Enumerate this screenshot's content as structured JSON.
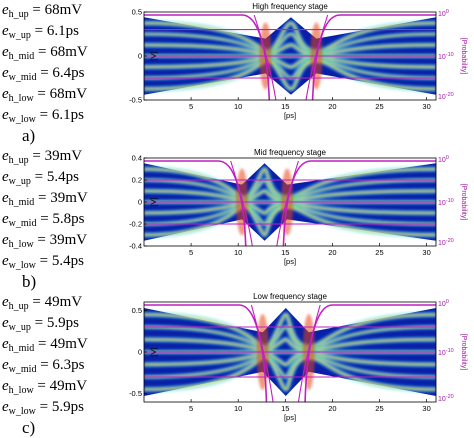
{
  "panels": [
    {
      "letter": "a)",
      "params": [
        {
          "sym": "e",
          "sub": "h_up",
          "value": " = 68mV"
        },
        {
          "sym": "e",
          "sub": "w_up",
          "value": " = 6.1ps"
        },
        {
          "sym": "e",
          "sub": "h_mid",
          "value": " = 68mV"
        },
        {
          "sym": "e",
          "sub": "w_mid",
          "value": " = 6.4ps"
        },
        {
          "sym": "e",
          "sub": "h_low",
          "value": " = 68mV"
        },
        {
          "sym": "e",
          "sub": "w_low",
          "value": " = 6.1ps"
        }
      ]
    },
    {
      "letter": "b)",
      "params": [
        {
          "sym": "e",
          "sub": "h_up",
          "value": " = 39mV"
        },
        {
          "sym": "e",
          "sub": "w_up",
          "value": " = 5.4ps"
        },
        {
          "sym": "e",
          "sub": "h_mid",
          "value": " = 39mV"
        },
        {
          "sym": "e",
          "sub": "w_mid",
          "value": " = 5.8ps"
        },
        {
          "sym": "e",
          "sub": "h_low",
          "value": " = 39mV"
        },
        {
          "sym": "e",
          "sub": "w_low",
          "value": " = 5.4ps"
        }
      ]
    },
    {
      "letter": "c)",
      "params": [
        {
          "sym": "e",
          "sub": "h_up",
          "value": " = 49mV"
        },
        {
          "sym": "e",
          "sub": "w_up",
          "value": " = 5.9ps"
        },
        {
          "sym": "e",
          "sub": "h_mid",
          "value": " = 49mV"
        },
        {
          "sym": "e",
          "sub": "w_mid",
          "value": " = 6.3ps"
        },
        {
          "sym": "e",
          "sub": "h_low",
          "value": " = 49mV"
        },
        {
          "sym": "e",
          "sub": "w_low",
          "value": " = 5.9ps"
        }
      ]
    }
  ],
  "chart_data": [
    {
      "type": "heatmap",
      "title": "High frequency stage",
      "xlabel": "[ps]",
      "ylabel": "[V]",
      "right_label": "[Probability]",
      "xlim": [
        0,
        31
      ],
      "ylim": [
        -0.5,
        0.5
      ],
      "xticks": [
        5,
        10,
        15,
        20,
        25,
        30
      ],
      "yticks": [
        -0.5,
        0,
        0.5
      ],
      "ytick_labels": [
        "-0.5",
        "0",
        "0.5"
      ],
      "right_ticks": [
        "10^0",
        "10^-10",
        "10^-20"
      ],
      "eye_crossings_ps": [
        12.9,
        18.3
      ],
      "eye_levels_v": [
        0.3,
        0.0,
        -0.25
      ],
      "bathtub_color": "#c21fc2",
      "colormap": "jet"
    },
    {
      "type": "heatmap",
      "title": "Mid frequency stage",
      "xlabel": "[ps]",
      "ylabel": "[V]",
      "right_label": "[Probability]",
      "xlim": [
        0,
        31
      ],
      "ylim": [
        -0.4,
        0.4
      ],
      "xticks": [
        5,
        10,
        15,
        20,
        25,
        30
      ],
      "yticks": [
        -0.4,
        -0.2,
        0,
        0.2,
        0.4
      ],
      "ytick_labels": [
        "-0.4",
        "-0.2",
        "0",
        "0.2",
        "0.4"
      ],
      "right_ticks": [
        "10^0",
        "10^-10",
        "10^-20"
      ],
      "eye_crossings_ps": [
        10.4,
        15.2
      ],
      "eye_levels_v": [
        0.2,
        0.0,
        -0.2
      ],
      "bathtub_color": "#c21fc2",
      "colormap": "jet"
    },
    {
      "type": "heatmap",
      "title": "Low frequency stage",
      "xlabel": "[ps]",
      "ylabel": "[V]",
      "right_label": "[Probability]",
      "xlim": [
        0,
        31
      ],
      "ylim": [
        -0.6,
        0.6
      ],
      "xticks": [
        5,
        10,
        15,
        20,
        25,
        30
      ],
      "yticks": [
        -0.5,
        0,
        0.5
      ],
      "ytick_labels": [
        "-0.5",
        "0",
        "0.5"
      ],
      "right_ticks": [
        "10^0",
        "10^-10",
        "10^-20"
      ],
      "eye_crossings_ps": [
        12.6,
        17.5
      ],
      "eye_levels_v": [
        0.3,
        0.0,
        -0.3
      ],
      "bathtub_color": "#c21fc2",
      "colormap": "jet"
    }
  ]
}
